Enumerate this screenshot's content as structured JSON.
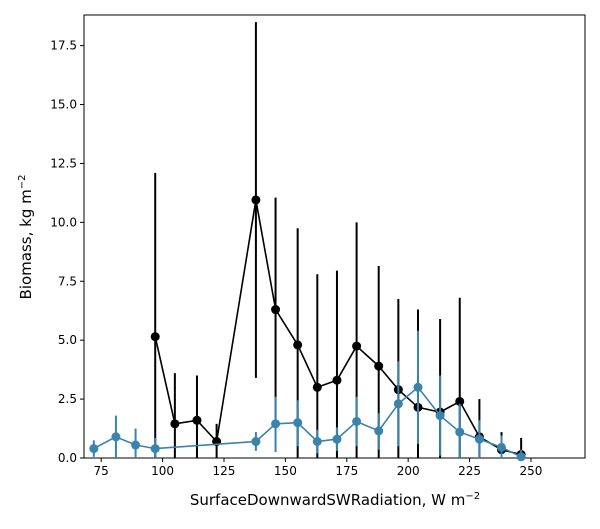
{
  "chart_data": {
    "type": "line",
    "title": "",
    "xlabel": "SurfaceDownwardSWRadiation,  W m",
    "xlabel_sup": "−2",
    "ylabel": "Biomass,  kg m",
    "ylabel_sup": "−2",
    "xlim": [
      68,
      272
    ],
    "ylim": [
      0,
      18.8
    ],
    "x_ticks": [
      75,
      100,
      125,
      150,
      175,
      200,
      225,
      250
    ],
    "x_tick_labels": [
      "75",
      "100",
      "125",
      "150",
      "175",
      "200",
      "225",
      "250"
    ],
    "y_ticks": [
      0,
      2.5,
      5,
      7.5,
      10,
      12.5,
      15,
      17.5
    ],
    "y_tick_labels": [
      "0.0",
      "2.5",
      "5.0",
      "7.5",
      "10.0",
      "12.5",
      "15.0",
      "17.5"
    ],
    "grid": false,
    "legend": "none",
    "series": [
      {
        "color": "#000000",
        "points": [
          {
            "x": 97,
            "y": 5.15,
            "lo": 0.0,
            "hi": 12.1
          },
          {
            "x": 105,
            "y": 1.45,
            "lo": 0.0,
            "hi": 3.6
          },
          {
            "x": 114,
            "y": 1.6,
            "lo": 0.0,
            "hi": 3.5
          },
          {
            "x": 122,
            "y": 0.7,
            "lo": 0.0,
            "hi": 1.45
          },
          {
            "x": 138,
            "y": 10.95,
            "lo": 3.4,
            "hi": 18.5
          },
          {
            "x": 146,
            "y": 6.3,
            "lo": 1.5,
            "hi": 11.05
          },
          {
            "x": 155,
            "y": 4.8,
            "lo": 0.0,
            "hi": 9.75
          },
          {
            "x": 163,
            "y": 3.0,
            "lo": 0.0,
            "hi": 7.8
          },
          {
            "x": 171,
            "y": 3.3,
            "lo": 0.0,
            "hi": 7.95
          },
          {
            "x": 179,
            "y": 4.75,
            "lo": 0.0,
            "hi": 10.0
          },
          {
            "x": 188,
            "y": 3.9,
            "lo": 0.0,
            "hi": 8.15
          },
          {
            "x": 196,
            "y": 2.9,
            "lo": 0.0,
            "hi": 6.75
          },
          {
            "x": 204,
            "y": 2.15,
            "lo": 0.0,
            "hi": 6.3
          },
          {
            "x": 213,
            "y": 1.95,
            "lo": 0.0,
            "hi": 5.9
          },
          {
            "x": 221,
            "y": 2.4,
            "lo": 0.0,
            "hi": 6.8
          },
          {
            "x": 229,
            "y": 0.9,
            "lo": 0.0,
            "hi": 2.5
          },
          {
            "x": 238,
            "y": 0.35,
            "lo": 0.0,
            "hi": 1.1
          },
          {
            "x": 246,
            "y": 0.15,
            "lo": 0.0,
            "hi": 0.85
          }
        ]
      },
      {
        "color": "#3a83ad",
        "points": [
          {
            "x": 72,
            "y": 0.4,
            "lo": 0.05,
            "hi": 0.75
          },
          {
            "x": 81,
            "y": 0.9,
            "lo": 0.0,
            "hi": 1.8
          },
          {
            "x": 89,
            "y": 0.55,
            "lo": 0.0,
            "hi": 1.25
          },
          {
            "x": 97,
            "y": 0.4,
            "lo": 0.0,
            "hi": 0.85
          },
          {
            "x": 138,
            "y": 0.7,
            "lo": 0.3,
            "hi": 1.1
          },
          {
            "x": 146,
            "y": 1.45,
            "lo": 0.25,
            "hi": 2.6
          },
          {
            "x": 155,
            "y": 1.5,
            "lo": 0.5,
            "hi": 2.45
          },
          {
            "x": 163,
            "y": 0.7,
            "lo": 0.2,
            "hi": 1.2
          },
          {
            "x": 171,
            "y": 0.8,
            "lo": 0.3,
            "hi": 1.3
          },
          {
            "x": 179,
            "y": 1.55,
            "lo": 0.5,
            "hi": 2.6
          },
          {
            "x": 188,
            "y": 1.15,
            "lo": 0.35,
            "hi": 1.9
          },
          {
            "x": 196,
            "y": 2.3,
            "lo": 0.5,
            "hi": 4.1
          },
          {
            "x": 204,
            "y": 3.0,
            "lo": 0.6,
            "hi": 5.4
          },
          {
            "x": 213,
            "y": 1.8,
            "lo": 0.1,
            "hi": 3.5
          },
          {
            "x": 221,
            "y": 1.1,
            "lo": 0.0,
            "hi": 2.3
          },
          {
            "x": 229,
            "y": 0.8,
            "lo": 0.0,
            "hi": 1.6
          },
          {
            "x": 238,
            "y": 0.45,
            "lo": 0.0,
            "hi": 0.95
          },
          {
            "x": 246,
            "y": 0.05,
            "lo": 0.0,
            "hi": 0.35
          }
        ]
      }
    ]
  }
}
